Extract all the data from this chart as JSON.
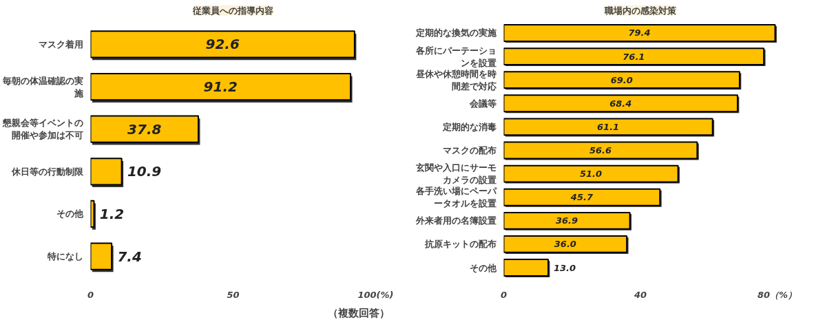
{
  "chart_data": [
    {
      "type": "bar",
      "orientation": "horizontal",
      "title": "従業員への指導内容",
      "categories": [
        "マスク着用",
        "毎朝の体温確認の実施",
        "懇親会等イベントの開催や参加は不可",
        "休日等の行動制限",
        "その他",
        "特になし"
      ],
      "values": [
        92.6,
        91.2,
        37.8,
        10.9,
        1.2,
        7.4
      ],
      "color": "#ffc000",
      "xlim": [
        0,
        100
      ],
      "xticks": [
        0,
        50,
        {
          "value": 100,
          "label": "100(%)"
        }
      ],
      "data_labels": true,
      "grid": false,
      "annotations": [
        "（複数回答）"
      ]
    },
    {
      "type": "bar",
      "orientation": "horizontal",
      "title": "職場内の感染対策",
      "categories": [
        "定期的な換気の実施",
        "各所にパーテーションを設置",
        "昼休や休憩時間を時間差で対応",
        "会議等",
        "定期的な消毒",
        "マスクの配布",
        "玄関や入口にサーモカメラの設置",
        "各手洗い場にペーパータオルを設置",
        "外来者用の名簿設置",
        "抗原キットの配布",
        "その他"
      ],
      "values": [
        79.4,
        76.1,
        69.0,
        68.4,
        61.1,
        56.6,
        51.0,
        45.7,
        36.9,
        36.0,
        13.0
      ],
      "value_labels": [
        "79.4",
        "76.1",
        "69.0",
        "68.4",
        "61.1",
        "56.6",
        "51.0",
        "45.7",
        "36.9",
        "36.0",
        "13.0"
      ],
      "color": "#ffc000",
      "xlim": [
        0,
        80
      ],
      "xticks": [
        0,
        40,
        {
          "value": 80,
          "label": "80（%）"
        }
      ],
      "grid": false
    }
  ]
}
